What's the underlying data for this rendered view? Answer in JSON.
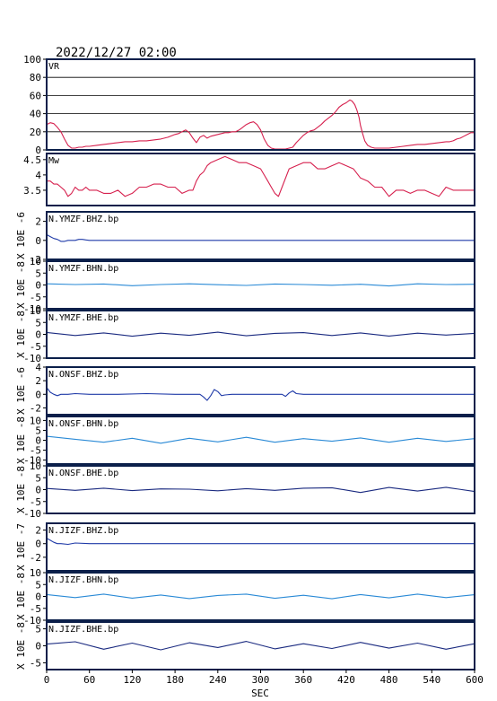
{
  "chart_data": {
    "type": "line",
    "title": "2022/12/27 02:00",
    "xlabel": "SEC",
    "xlim": [
      0,
      600
    ],
    "xticks": [
      0,
      60,
      120,
      180,
      240,
      300,
      360,
      420,
      480,
      540,
      600
    ],
    "panels": [
      {
        "label": "VR",
        "ylabel": "",
        "ylim": [
          0,
          100
        ],
        "yticks": [
          0,
          20,
          40,
          60,
          80,
          100
        ],
        "grid": true,
        "color": "#d6204e",
        "series": {
          "x": [
            0,
            5,
            10,
            15,
            20,
            25,
            30,
            35,
            40,
            45,
            50,
            55,
            60,
            70,
            80,
            90,
            100,
            110,
            120,
            130,
            140,
            150,
            160,
            170,
            180,
            185,
            190,
            195,
            200,
            205,
            210,
            215,
            220,
            225,
            230,
            240,
            250,
            255,
            260,
            265,
            270,
            275,
            280,
            285,
            290,
            295,
            300,
            305,
            310,
            315,
            320,
            325,
            330,
            335,
            340,
            345,
            350,
            355,
            360,
            365,
            370,
            375,
            380,
            385,
            390,
            395,
            400,
            405,
            410,
            415,
            420,
            425,
            428,
            432,
            435,
            438,
            440,
            443,
            446,
            450,
            455,
            460,
            465,
            470,
            480,
            490,
            500,
            510,
            520,
            530,
            540,
            550,
            560,
            565,
            570,
            575,
            580,
            585,
            590,
            595,
            600
          ],
          "y": [
            28,
            30,
            29,
            25,
            20,
            12,
            5,
            2,
            2,
            3,
            3,
            4,
            4,
            5,
            6,
            7,
            8,
            9,
            9,
            10,
            10,
            11,
            12,
            14,
            17,
            18,
            20,
            22,
            19,
            13,
            8,
            14,
            16,
            13,
            15,
            17,
            19,
            19,
            20,
            20,
            22,
            25,
            28,
            30,
            31,
            28,
            22,
            12,
            5,
            2,
            1,
            1,
            1,
            1,
            2,
            3,
            8,
            12,
            16,
            19,
            21,
            22,
            25,
            28,
            32,
            35,
            38,
            42,
            47,
            50,
            52,
            55,
            54,
            50,
            44,
            36,
            27,
            18,
            10,
            5,
            3,
            2,
            2,
            2,
            2,
            3,
            4,
            5,
            6,
            6,
            7,
            8,
            9,
            9,
            10,
            12,
            13,
            15,
            17,
            19,
            19
          ]
        }
      },
      {
        "label": "Mw",
        "ylabel": "",
        "ylim": [
          3.0,
          4.7
        ],
        "yticks": [
          3.5,
          4.0,
          4.5
        ],
        "grid": false,
        "color": "#d6204e",
        "series": {
          "x": [
            0,
            5,
            10,
            15,
            20,
            25,
            30,
            35,
            40,
            45,
            50,
            55,
            60,
            70,
            80,
            90,
            100,
            110,
            120,
            130,
            140,
            150,
            160,
            170,
            180,
            190,
            200,
            205,
            210,
            215,
            220,
            225,
            230,
            240,
            250,
            260,
            270,
            280,
            290,
            300,
            305,
            310,
            315,
            320,
            325,
            330,
            340,
            350,
            360,
            370,
            380,
            390,
            400,
            410,
            420,
            430,
            440,
            450,
            460,
            470,
            480,
            490,
            500,
            510,
            520,
            530,
            540,
            550,
            560,
            570,
            580,
            590,
            600
          ],
          "y": [
            3.8,
            3.8,
            3.7,
            3.7,
            3.6,
            3.5,
            3.3,
            3.4,
            3.6,
            3.5,
            3.5,
            3.6,
            3.5,
            3.5,
            3.4,
            3.4,
            3.5,
            3.3,
            3.4,
            3.6,
            3.6,
            3.7,
            3.7,
            3.6,
            3.6,
            3.4,
            3.5,
            3.5,
            3.8,
            4.0,
            4.1,
            4.3,
            4.4,
            4.5,
            4.6,
            4.5,
            4.4,
            4.4,
            4.3,
            4.2,
            4.0,
            3.8,
            3.6,
            3.4,
            3.3,
            3.6,
            4.2,
            4.3,
            4.4,
            4.4,
            4.2,
            4.2,
            4.3,
            4.4,
            4.3,
            4.2,
            3.9,
            3.8,
            3.6,
            3.6,
            3.3,
            3.5,
            3.5,
            3.4,
            3.5,
            3.5,
            3.4,
            3.3,
            3.6,
            3.5,
            3.5,
            3.5,
            3.5
          ]
        }
      },
      {
        "label": "N.YMZF.BHZ.bp",
        "ylabel": "X 10E -6",
        "ylim": [
          -2,
          3
        ],
        "yticks": [
          -2,
          0,
          2
        ],
        "grid": false,
        "color": "#1f3aa8",
        "series": {
          "x": [
            0,
            5,
            10,
            15,
            20,
            25,
            30,
            35,
            40,
            45,
            50,
            55,
            60,
            600
          ],
          "y": [
            0.6,
            0.4,
            0.2,
            0.1,
            -0.1,
            -0.1,
            0,
            0,
            0,
            0.1,
            0.1,
            0.05,
            0,
            0
          ]
        }
      },
      {
        "label": "N.YMZF.BHN.bp",
        "ylabel": "X 10E -8",
        "ylim": [
          -10,
          10
        ],
        "yticks": [
          -10,
          -5,
          0,
          5,
          10
        ],
        "grid": false,
        "color": "#2a8ad6",
        "series": {
          "x": [
            0,
            40,
            80,
            120,
            160,
            200,
            240,
            280,
            320,
            360,
            400,
            440,
            480,
            520,
            560,
            600
          ],
          "y": [
            0.5,
            0.2,
            0.4,
            -0.3,
            0.2,
            0.5,
            0.1,
            -0.2,
            0.4,
            0.2,
            -0.1,
            0.3,
            -0.4,
            0.5,
            0.2,
            0.3
          ]
        }
      },
      {
        "label": "N.YMZF.BHE.bp",
        "ylabel": "X 10E -8",
        "ylim": [
          -10,
          10
        ],
        "yticks": [
          -10,
          -5,
          0,
          5,
          10
        ],
        "grid": false,
        "color": "#1a2a80",
        "series": {
          "x": [
            0,
            40,
            80,
            120,
            160,
            200,
            240,
            280,
            320,
            360,
            400,
            440,
            480,
            520,
            560,
            600
          ],
          "y": [
            0.8,
            -0.5,
            0.6,
            -0.8,
            0.5,
            -0.4,
            0.9,
            -0.6,
            0.4,
            0.7,
            -0.5,
            0.6,
            -0.7,
            0.5,
            -0.3,
            0.4
          ]
        }
      },
      {
        "label": "N.ONSF.BHZ.bp",
        "ylabel": "X 10E -6",
        "ylim": [
          -3,
          4
        ],
        "yticks": [
          -2,
          0,
          2,
          4
        ],
        "grid": false,
        "color": "#1f3aa8",
        "series": {
          "x": [
            0,
            5,
            10,
            15,
            20,
            25,
            30,
            40,
            60,
            100,
            140,
            180,
            200,
            215,
            220,
            225,
            230,
            235,
            240,
            245,
            250,
            260,
            300,
            320,
            330,
            335,
            340,
            345,
            350,
            360,
            400,
            440,
            480,
            520,
            560,
            600
          ],
          "y": [
            1.0,
            0.3,
            0,
            -0.2,
            0,
            0,
            0,
            0.1,
            0,
            0,
            0.1,
            0,
            0,
            0,
            -0.4,
            -0.9,
            -0.2,
            0.7,
            0.4,
            -0.2,
            -0.1,
            0,
            0,
            0,
            0,
            -0.3,
            0.2,
            0.5,
            0.1,
            0,
            0,
            0,
            0,
            0,
            0,
            0
          ]
        }
      },
      {
        "label": "N.ONSF.BHN.bp",
        "ylabel": "X 10E -8",
        "ylim": [
          -12,
          12
        ],
        "yticks": [
          -10,
          -5,
          0,
          5,
          10
        ],
        "grid": false,
        "color": "#2a8ad6",
        "series": {
          "x": [
            0,
            40,
            80,
            120,
            160,
            200,
            240,
            280,
            320,
            360,
            400,
            440,
            480,
            520,
            560,
            600
          ],
          "y": [
            2,
            0.5,
            -1,
            1,
            -1.5,
            1,
            -0.8,
            1.5,
            -1,
            0.8,
            -0.5,
            1.2,
            -1,
            1,
            -0.6,
            0.8
          ]
        }
      },
      {
        "label": "N.ONSF.BHE.bp",
        "ylabel": "X 10E -8",
        "ylim": [
          -10,
          10
        ],
        "yticks": [
          -10,
          -5,
          0,
          5,
          10
        ],
        "grid": false,
        "color": "#1a2a80",
        "series": {
          "x": [
            0,
            40,
            80,
            120,
            160,
            200,
            240,
            280,
            320,
            360,
            400,
            440,
            480,
            520,
            560,
            600
          ],
          "y": [
            0.5,
            -0.3,
            0.6,
            -0.4,
            0.3,
            0.2,
            -0.5,
            0.4,
            -0.3,
            0.6,
            0.8,
            -1.2,
            0.9,
            -0.6,
            1.0,
            -0.8
          ]
        }
      },
      {
        "label": "N.JIZF.BHZ.bp",
        "ylabel": "X 10E -7",
        "ylim": [
          -4,
          3
        ],
        "yticks": [
          -2,
          0,
          2
        ],
        "grid": false,
        "color": "#1f3aa8",
        "series": {
          "x": [
            0,
            5,
            10,
            15,
            20,
            30,
            40,
            60,
            100,
            200,
            300,
            400,
            500,
            600
          ],
          "y": [
            0.8,
            0.5,
            0.2,
            0,
            0,
            -0.1,
            0.1,
            0,
            0,
            0,
            0,
            0,
            0,
            0
          ]
        }
      },
      {
        "label": "N.JIZF.BHN.bp",
        "ylabel": "X 10E -8",
        "ylim": [
          -10,
          10
        ],
        "yticks": [
          -10,
          -5,
          0,
          5,
          10
        ],
        "grid": false,
        "color": "#2a8ad6",
        "series": {
          "x": [
            0,
            40,
            80,
            120,
            160,
            200,
            240,
            280,
            320,
            360,
            400,
            440,
            480,
            520,
            560,
            600
          ],
          "y": [
            0.8,
            -0.5,
            1,
            -0.7,
            0.6,
            -0.9,
            0.4,
            1,
            -0.8,
            0.5,
            -1,
            0.8,
            -0.6,
            1,
            -0.5,
            0.7
          ]
        }
      },
      {
        "label": "N.JIZF.BHE.bp",
        "ylabel": "X 10E -8",
        "ylim": [
          -7,
          7
        ],
        "yticks": [
          -5,
          0,
          5
        ],
        "grid": false,
        "color": "#1a2a80",
        "series": {
          "x": [
            0,
            40,
            80,
            120,
            160,
            200,
            240,
            280,
            320,
            360,
            400,
            440,
            480,
            520,
            560,
            600
          ],
          "y": [
            0.5,
            1.2,
            -1,
            0.8,
            -1.2,
            0.9,
            -0.5,
            1.3,
            -0.9,
            0.6,
            -0.8,
            1.0,
            -0.7,
            0.8,
            -1.0,
            0.6
          ]
        }
      }
    ]
  }
}
